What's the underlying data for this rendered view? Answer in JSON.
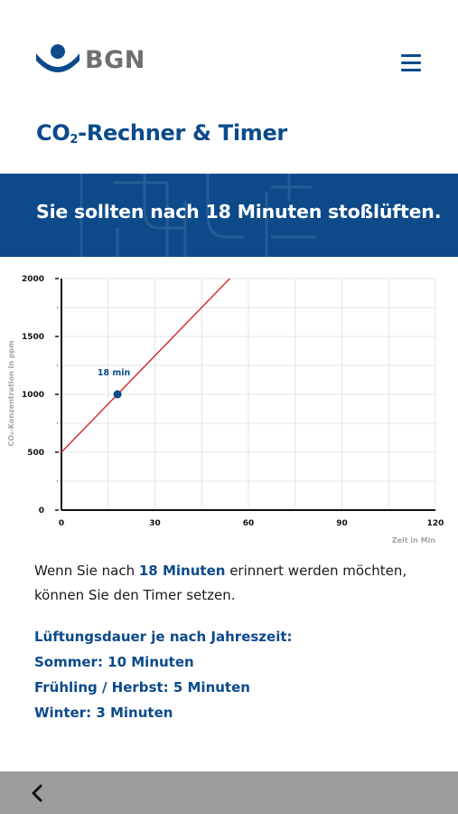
{
  "header": {
    "logo_text": "BGN",
    "menu_icon": "hamburger-menu-icon",
    "brand_color": "#0b4a8b"
  },
  "page": {
    "title_prefix": "CO",
    "title_sub": "2",
    "title_suffix": "-Rechner & Timer"
  },
  "banner": {
    "text": "Sie sollten nach 18 Minuten stoßlüften.",
    "background": "#0c4a8a"
  },
  "chart_data": {
    "type": "line",
    "x": [
      0,
      54
    ],
    "series": [
      {
        "values": [
          500,
          2000
        ],
        "color": "#d62f2f"
      }
    ],
    "marker": {
      "x": 18,
      "y": 1000,
      "label": "18 min"
    },
    "xlabel": "Zeit in Min",
    "ylabel": "CO₂-Konzentration in ppm",
    "xlim": [
      0,
      120
    ],
    "ylim": [
      0,
      2000
    ],
    "xticks": [
      0,
      30,
      60,
      90,
      120
    ],
    "yticks": [
      0,
      500,
      1000,
      1500,
      2000
    ],
    "grid": true
  },
  "info": {
    "line1_pre": "Wenn Sie nach ",
    "line1_highlight": "18 Minuten",
    "line1_post": " erinnert werden möchten,",
    "line2": "können Sie den Timer setzen."
  },
  "seasons": {
    "heading": "Lüftungsdauer je nach Jahreszeit:",
    "summer": "Sommer: 10 Minuten",
    "spring_autumn": "Frühling / Herbst: 5 Minuten",
    "winter": "Winter: 3 Minuten"
  },
  "footer": {
    "back_icon": "chevron-left-icon"
  }
}
